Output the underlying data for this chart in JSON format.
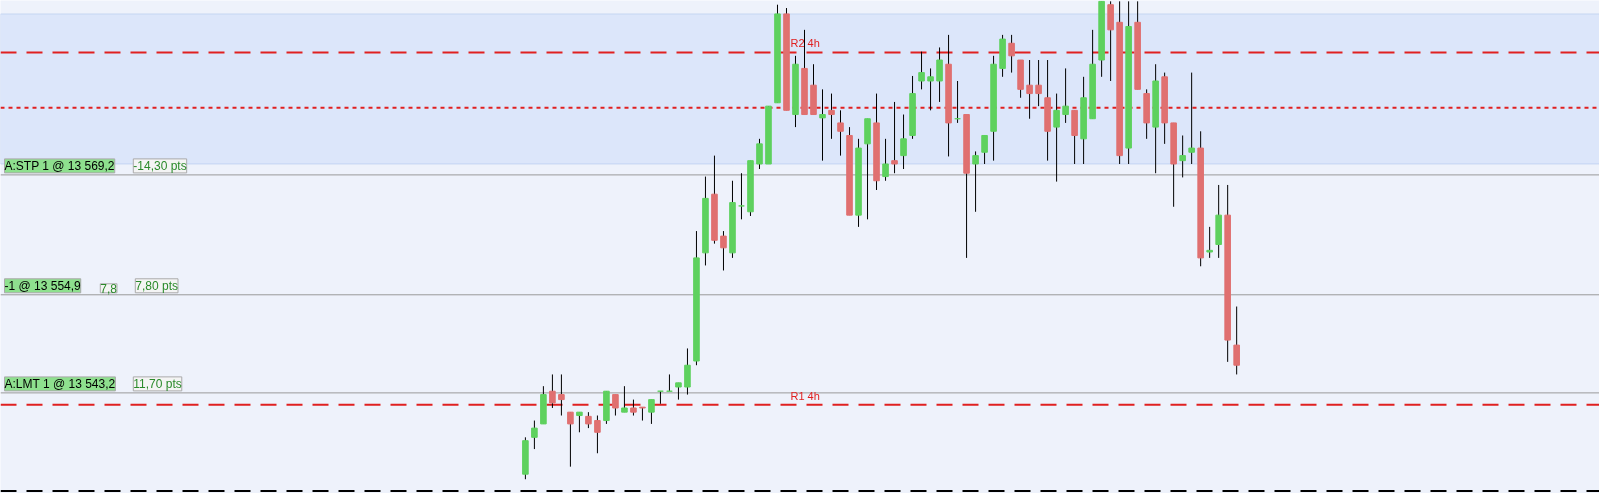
{
  "chart_data": {
    "type": "candlestick",
    "categories": [
      null,
      null,
      null,
      null,
      null,
      null,
      null,
      null,
      null,
      null,
      null,
      null,
      null,
      null,
      null,
      null,
      null,
      null,
      null,
      null,
      null,
      null,
      null,
      null,
      null,
      null,
      null,
      null,
      null,
      null,
      null,
      null,
      null,
      null,
      null,
      null,
      null,
      null,
      null,
      null,
      null,
      null,
      null,
      null,
      null,
      null,
      null,
      null,
      null,
      null,
      null,
      null,
      null,
      null,
      null,
      null,
      null,
      null,
      null,
      null,
      null,
      null,
      null,
      null,
      null,
      null,
      null,
      null,
      null,
      null,
      null,
      null,
      null,
      null,
      null,
      null,
      null,
      null,
      null,
      null
    ],
    "ohlc": [
      [
        13533.5,
        13537.9,
        13532.9,
        13537.5
      ],
      [
        13537.9,
        13539.9,
        13536.5,
        13539.0
      ],
      [
        13539.5,
        13544.0,
        13539.5,
        13543.0
      ],
      [
        13543.4,
        13545.4,
        13541.4,
        13542.0
      ],
      [
        13543.0,
        13545.4,
        13540.5,
        13542.4
      ],
      [
        13540.9,
        13540.9,
        13534.4,
        13539.5
      ],
      [
        13540.5,
        13540.9,
        13538.5,
        13540.9
      ],
      [
        13540.4,
        13540.9,
        13539.0,
        13539.5
      ],
      [
        13539.9,
        13540.5,
        13536.0,
        13538.5
      ],
      [
        13539.9,
        13543.4,
        13539.5,
        13543.4
      ],
      [
        13543.0,
        13543.0,
        13540.5,
        13541.4
      ],
      [
        13540.9,
        13544.0,
        13540.9,
        13541.4
      ],
      [
        13541.4,
        13542.4,
        13540.5,
        13540.9
      ],
      [
        13541.5,
        13541.5,
        13539.9,
        13541.4
      ],
      [
        13540.9,
        13542.4,
        13539.5,
        13542.4
      ],
      [
        13543.4,
        13543.4,
        13541.9,
        13543.4
      ],
      [
        13543.4,
        13545.4,
        13543.4,
        13543.4
      ],
      [
        13543.9,
        13544.4,
        13542.4,
        13544.4
      ],
      [
        13543.9,
        13548.5,
        13543.0,
        13546.5
      ],
      [
        13547.0,
        13562.5,
        13546.5,
        13559.3
      ],
      [
        13559.9,
        13569.0,
        13558.4,
        13566.4
      ],
      [
        13566.9,
        13571.5,
        13561.0,
        13561.4
      ],
      [
        13561.9,
        13562.5,
        13557.8,
        13560.5
      ],
      [
        13559.9,
        13568.5,
        13559.3,
        13565.9
      ],
      [
        13565.5,
        13569.4,
        13563.9,
        13565.5
      ],
      [
        13564.8,
        13570.9,
        13564.3,
        13570.9
      ],
      [
        13570.5,
        13573.5,
        13569.9,
        13572.9
      ],
      [
        13570.5,
        13577.4,
        13570.5,
        13577.4
      ],
      [
        13577.8,
        13589.5,
        13577.8,
        13588.4
      ],
      [
        13588.4,
        13589.1,
        13576.9,
        13576.9
      ],
      [
        13576.4,
        13583.4,
        13574.9,
        13582.4
      ],
      [
        13581.9,
        13586.5,
        13576.4,
        13576.4
      ],
      [
        13579.9,
        13582.4,
        13576.4,
        13576.4
      ],
      [
        13576.0,
        13579.4,
        13570.9,
        13576.4
      ],
      [
        13576.9,
        13578.9,
        13573.5,
        13576.4
      ],
      [
        13575.4,
        13576.9,
        13571.5,
        13574.4
      ],
      [
        13573.9,
        13574.9,
        13564.4,
        13564.4
      ],
      [
        13564.4,
        13573.5,
        13563.0,
        13572.4
      ],
      [
        13572.9,
        13575.9,
        13563.9,
        13575.9
      ],
      [
        13575.4,
        13578.9,
        13567.4,
        13568.5
      ],
      [
        13569.0,
        13573.5,
        13568.5,
        13570.5
      ],
      [
        13570.9,
        13577.9,
        13569.4,
        13570.5
      ],
      [
        13571.5,
        13576.4,
        13569.9,
        13573.5
      ],
      [
        13573.9,
        13581.0,
        13573.5,
        13578.9
      ],
      [
        13580.4,
        13583.9,
        13579.4,
        13581.4
      ],
      [
        13580.4,
        13581.9,
        13576.9,
        13580.9
      ],
      [
        13580.4,
        13584.4,
        13577.9,
        13582.9
      ],
      [
        13582.4,
        13585.9,
        13571.4,
        13575.4
      ],
      [
        13575.9,
        13580.4,
        13575.4,
        13575.9
      ],
      [
        13576.4,
        13576.4,
        13559.3,
        13569.4
      ],
      [
        13570.5,
        13572.0,
        13564.8,
        13571.5
      ],
      [
        13571.9,
        13573.9,
        13570.5,
        13573.9
      ],
      [
        13574.4,
        13583.4,
        13570.9,
        13582.4
      ],
      [
        13581.9,
        13585.9,
        13580.9,
        13585.4
      ],
      [
        13584.9,
        13585.9,
        13581.4,
        13583.4
      ],
      [
        13582.9,
        13582.9,
        13578.4,
        13579.4
      ],
      [
        13579.9,
        13582.9,
        13575.9,
        13578.9
      ],
      [
        13579.9,
        13582.9,
        13577.4,
        13578.9
      ],
      [
        13578.4,
        13582.9,
        13570.9,
        13574.4
      ],
      [
        13574.9,
        13578.9,
        13568.4,
        13576.9
      ],
      [
        13576.4,
        13581.9,
        13575.4,
        13577.4
      ],
      [
        13576.9,
        13576.9,
        13570.5,
        13573.9
      ],
      [
        13573.5,
        13580.9,
        13570.5,
        13578.4
      ],
      [
        13575.9,
        13586.5,
        13575.9,
        13582.4
      ],
      [
        13582.9,
        13589.9,
        13580.9,
        13589.9
      ],
      [
        13589.5,
        13589.9,
        13580.4,
        13586.5
      ],
      [
        13587.4,
        13589.9,
        13570.5,
        13571.5
      ],
      [
        13572.4,
        13589.9,
        13570.5,
        13586.9
      ],
      [
        13587.4,
        13589.9,
        13579.4,
        13579.4
      ],
      [
        13578.9,
        13579.4,
        13573.5,
        13575.4
      ],
      [
        13574.9,
        13582.4,
        13569.4,
        13580.4
      ],
      [
        13580.9,
        13581.4,
        13572.9,
        13575.4
      ],
      [
        13575.4,
        13575.4,
        13565.4,
        13570.5
      ],
      [
        13570.9,
        13573.9,
        13568.9,
        13571.5
      ],
      [
        13571.9,
        13581.4,
        13570.5,
        13572.4
      ],
      [
        13572.4,
        13574.4,
        13558.3,
        13559.3
      ],
      [
        13560.0,
        13563.0,
        13559.3,
        13560.2
      ],
      [
        13560.9,
        13568.0,
        13559.3,
        13564.4
      ],
      [
        13564.4,
        13568.0,
        13546.9,
        13549.5
      ],
      [
        13548.9,
        13553.5,
        13545.4,
        13546.5
      ]
    ],
    "colors": [
      "#5ed15e",
      "#5ed15e",
      "#5ed15e",
      "#e07070",
      "#e07070",
      "#e07070",
      "#5ed15e",
      "#e07070",
      "#e07070",
      "#5ed15e",
      "#e07070",
      "#5ed15e",
      "#e07070",
      "#e07070",
      "#5ed15e",
      "#5ed15e",
      "#5ed15e",
      "#5ed15e",
      "#5ed15e",
      "#5ed15e",
      "#5ed15e",
      "#e07070",
      "#e07070",
      "#5ed15e",
      "#5ed15e",
      "#5ed15e",
      "#5ed15e",
      "#5ed15e",
      "#5ed15e",
      "#e07070",
      "#5ed15e",
      "#e07070",
      "#e07070",
      "#5ed15e",
      "#e07070",
      "#e07070",
      "#e07070",
      "#5ed15e",
      "#5ed15e",
      "#e07070",
      "#5ed15e",
      "#e07070",
      "#5ed15e",
      "#5ed15e",
      "#5ed15e",
      "#5ed15e",
      "#5ed15e",
      "#e07070",
      "#5ed15e",
      "#e07070",
      "#5ed15e",
      "#5ed15e",
      "#5ed15e",
      "#5ed15e",
      "#e07070",
      "#e07070",
      "#e07070",
      "#e07070",
      "#e07070",
      "#5ed15e",
      "#5ed15e",
      "#e07070",
      "#5ed15e",
      "#5ed15e",
      "#5ed15e",
      "#e07070",
      "#e07070",
      "#5ed15e",
      "#e07070",
      "#e07070",
      "#5ed15e",
      "#e07070",
      "#e07070",
      "#5ed15e",
      "#5ed15e",
      "#e07070",
      "#5ed15e",
      "#5ed15e",
      "#e07070",
      "#e07070"
    ],
    "ylim": [
      13531.2,
      13590.0
    ],
    "tick_labels": false,
    "ref_lines": [
      {
        "axis": "y",
        "value": 13583.8,
        "label": "R2 4h",
        "color": "#e02020",
        "line_style": "dashed"
      },
      {
        "axis": "y",
        "value": 13577.2,
        "color": "#e02020",
        "line_style": "dotted"
      },
      {
        "axis": "y",
        "value": 13569.2,
        "label": "A:STP 1 @ 13 569,2",
        "color": "#9a9a9a",
        "line_style": "solid"
      },
      {
        "axis": "y",
        "value": 13554.9,
        "label": "-1 @ 13 554,9",
        "color": "#9a9a9a",
        "line_style": "solid"
      },
      {
        "axis": "y",
        "value": 13543.2,
        "label": "A:LMT 1 @ 13 543,2",
        "color": "#9a9a9a",
        "line_style": "solid"
      },
      {
        "axis": "y",
        "value": 13541.8,
        "label": "R1 4h",
        "color": "#e02020",
        "line_style": "dashed"
      },
      {
        "axis": "y",
        "value": 13531.5,
        "color": "#000000",
        "line_style": "dashed"
      }
    ],
    "bands": [
      {
        "axis": "y",
        "from": 13570.5,
        "to": 13588.4,
        "color": "#dce6fa"
      }
    ],
    "annotations": [
      {
        "text": "-14,30 pts",
        "y": 13569.2
      },
      {
        "text": "7,8",
        "y": 13554.9
      },
      {
        "text": "7,80 pts",
        "y": 13554.9
      },
      {
        "text": "11,70 pts",
        "y": 13543.2
      }
    ]
  }
}
